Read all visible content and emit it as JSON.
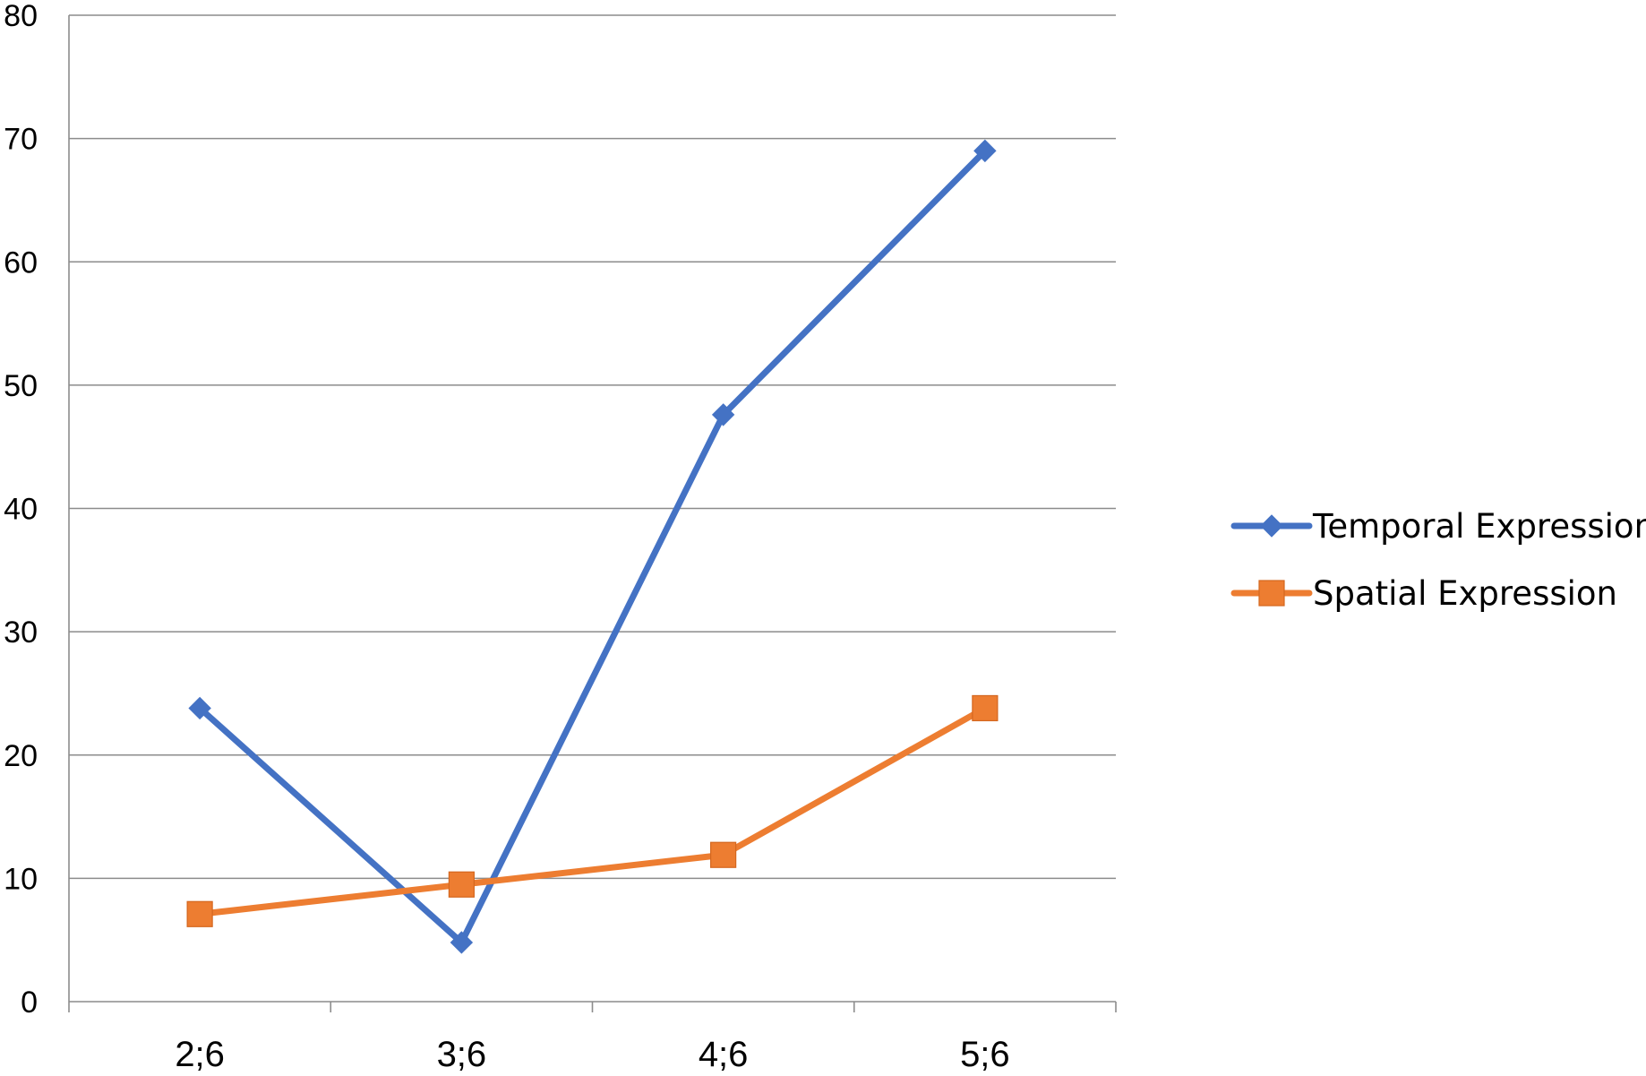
{
  "chart_data": {
    "type": "line",
    "title": "",
    "xlabel": "",
    "ylabel": "",
    "categories": [
      "2;6",
      "3;6",
      "4;6",
      "5;6"
    ],
    "ylim": [
      0,
      80
    ],
    "yticks": [
      0,
      10,
      20,
      30,
      40,
      50,
      60,
      70,
      80
    ],
    "grid": true,
    "legend_position": "right",
    "series": [
      {
        "name": "Temporal Expression",
        "values": [
          23.8,
          4.8,
          47.6,
          69.0
        ],
        "color": "#4472C4",
        "marker": "diamond"
      },
      {
        "name": "Spatial Expression",
        "values": [
          7.1,
          9.5,
          11.9,
          23.8
        ],
        "color": "#ED7D31",
        "marker": "square"
      }
    ]
  }
}
